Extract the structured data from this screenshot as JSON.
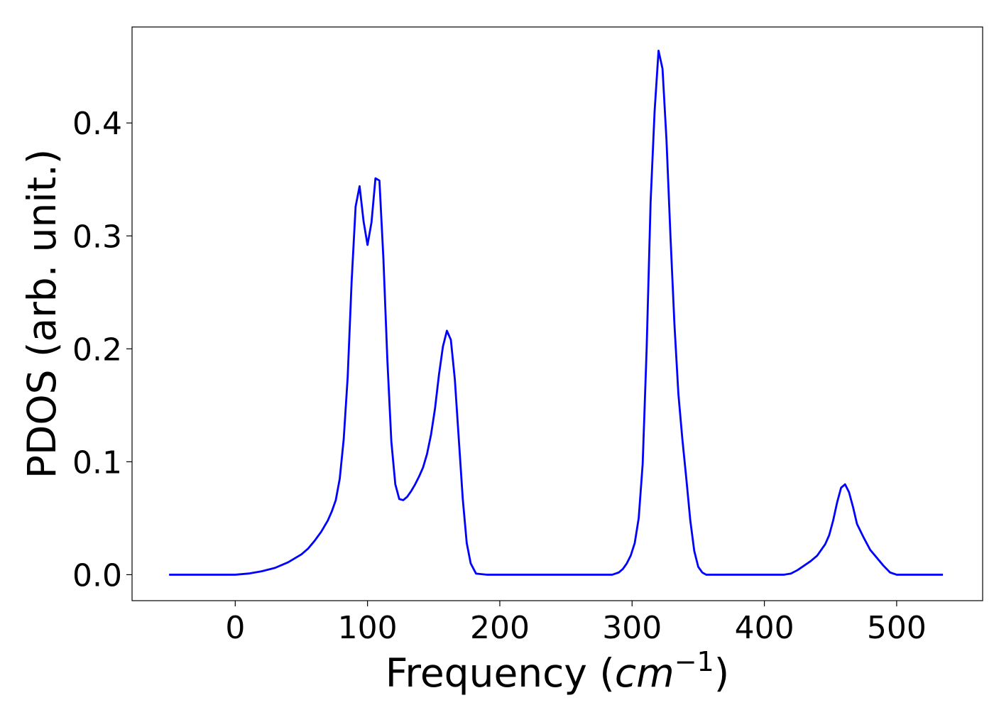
{
  "chart_data": {
    "type": "line",
    "title": "",
    "xlabel": "Frequency (",
    "xlabel_math": "cm",
    "xlabel_sup": "−1",
    "xlabel_close": ")",
    "ylabel": "PDOS (arb. unit.)",
    "xlim": [
      -78,
      565
    ],
    "ylim": [
      -0.023,
      0.485
    ],
    "xticks": [
      0,
      100,
      200,
      300,
      400,
      500
    ],
    "xtick_labels": [
      "0",
      "100",
      "200",
      "300",
      "400",
      "500"
    ],
    "yticks": [
      0.0,
      0.1,
      0.2,
      0.3,
      0.4
    ],
    "ytick_labels": [
      "0.0",
      "0.1",
      "0.2",
      "0.3",
      "0.4"
    ],
    "grid": false,
    "series": [
      {
        "color": "#0000ff",
        "x": [
          -50,
          0,
          10,
          20,
          30,
          40,
          50,
          55,
          60,
          65,
          70,
          73,
          76,
          79,
          82,
          85,
          88,
          91,
          94,
          97,
          100,
          103,
          106,
          109,
          112,
          115,
          118,
          121,
          124,
          127,
          130,
          133,
          136,
          139,
          142,
          145,
          148,
          151,
          154,
          157,
          160,
          163,
          166,
          169,
          172,
          175,
          178,
          182,
          190,
          250,
          285,
          290,
          293,
          296,
          299,
          302,
          305,
          308,
          311,
          314,
          317,
          320,
          323,
          326,
          329,
          332,
          335,
          338,
          341,
          344,
          347,
          350,
          353,
          356,
          360,
          400,
          415,
          420,
          425,
          430,
          435,
          440,
          443,
          446,
          449,
          452,
          455,
          458,
          461,
          464,
          467,
          470,
          475,
          480,
          485,
          490,
          495,
          500,
          510,
          535
        ],
        "y": [
          0.0,
          0.0,
          0.001,
          0.003,
          0.006,
          0.011,
          0.018,
          0.023,
          0.03,
          0.038,
          0.048,
          0.056,
          0.066,
          0.085,
          0.12,
          0.175,
          0.26,
          0.326,
          0.344,
          0.313,
          0.292,
          0.312,
          0.351,
          0.349,
          0.28,
          0.19,
          0.118,
          0.08,
          0.067,
          0.066,
          0.069,
          0.074,
          0.08,
          0.087,
          0.095,
          0.107,
          0.124,
          0.147,
          0.177,
          0.202,
          0.216,
          0.208,
          0.173,
          0.12,
          0.067,
          0.028,
          0.01,
          0.001,
          0.0,
          0.0,
          0.0,
          0.002,
          0.005,
          0.01,
          0.017,
          0.028,
          0.05,
          0.098,
          0.2,
          0.33,
          0.41,
          0.464,
          0.448,
          0.385,
          0.3,
          0.222,
          0.16,
          0.12,
          0.085,
          0.048,
          0.021,
          0.007,
          0.002,
          0.0,
          0.0,
          0.0,
          0.0,
          0.001,
          0.004,
          0.008,
          0.012,
          0.017,
          0.022,
          0.027,
          0.035,
          0.048,
          0.064,
          0.077,
          0.08,
          0.073,
          0.06,
          0.045,
          0.033,
          0.022,
          0.015,
          0.008,
          0.002,
          0.0,
          0.0,
          0.0
        ]
      }
    ]
  }
}
